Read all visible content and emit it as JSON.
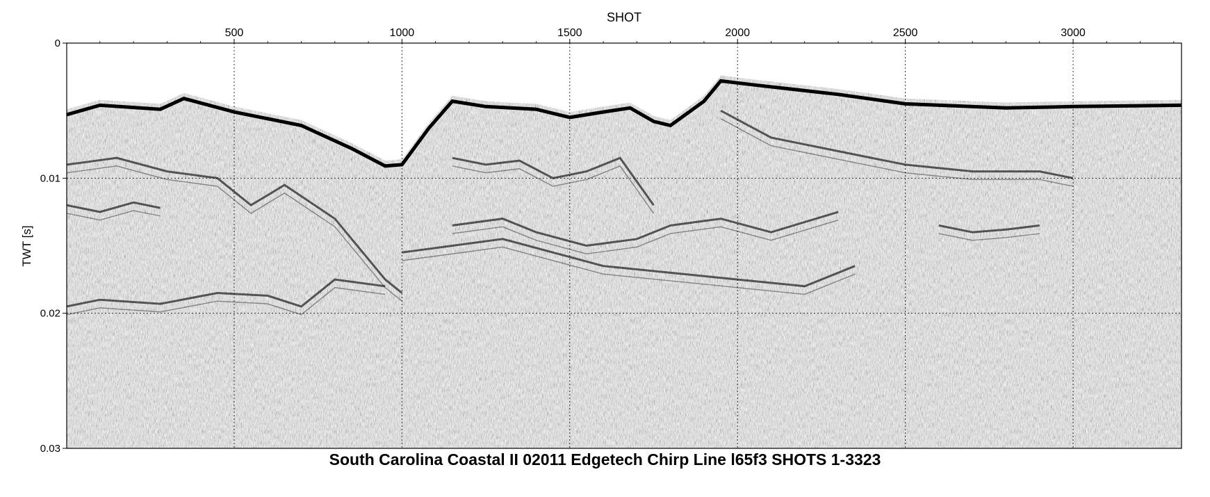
{
  "chart_data": {
    "type": "seismic-section",
    "title": "South Carolina Coastal II 02011 Edgetech Chirp Line l65f3 SHOTS 1-3323",
    "xlabel": "SHOT",
    "ylabel": "TWT [s]",
    "xlim": [
      1,
      3323
    ],
    "ylim": [
      0,
      0.03
    ],
    "x_ticks": [
      500,
      1000,
      1500,
      2000,
      2500,
      3000
    ],
    "x_tick_labels": [
      "500",
      "1000",
      "1500",
      "2000",
      "2500",
      "3000"
    ],
    "y_ticks": [
      0,
      0.01,
      0.02,
      0.03
    ],
    "y_tick_labels": [
      "0",
      "0.01",
      "0.02",
      "0.03"
    ],
    "y_inverted": true,
    "grid": true,
    "colormap": "grayscale",
    "seafloor_reflector": {
      "shot": [
        1,
        100,
        280,
        350,
        500,
        700,
        850,
        950,
        1000,
        1080,
        1150,
        1250,
        1400,
        1500,
        1600,
        1680,
        1750,
        1800,
        1900,
        1950,
        2050,
        2300,
        2500,
        2800,
        3000,
        3323
      ],
      "twt": [
        0.005,
        0.0043,
        0.0046,
        0.0038,
        0.0048,
        0.0058,
        0.0075,
        0.0088,
        0.0087,
        0.006,
        0.004,
        0.0044,
        0.0046,
        0.0052,
        0.0048,
        0.0045,
        0.0055,
        0.0058,
        0.004,
        0.0025,
        0.0028,
        0.0035,
        0.0042,
        0.0045,
        0.0044,
        0.0043
      ]
    },
    "subbottom_reflectors": [
      {
        "shot": [
          1,
          150,
          300,
          450,
          550,
          650,
          800,
          950,
          1000
        ],
        "twt": [
          0.009,
          0.0085,
          0.0095,
          0.01,
          0.012,
          0.0105,
          0.013,
          0.0175,
          0.0185
        ]
      },
      {
        "shot": [
          1,
          100,
          200,
          280
        ],
        "twt": [
          0.012,
          0.0125,
          0.0118,
          0.0122
        ]
      },
      {
        "shot": [
          1,
          100,
          280,
          450,
          600,
          700,
          800,
          950
        ],
        "twt": [
          0.0195,
          0.019,
          0.0193,
          0.0185,
          0.0187,
          0.0195,
          0.0175,
          0.018
        ]
      },
      {
        "shot": [
          1150,
          1250,
          1350,
          1450,
          1550,
          1650,
          1750
        ],
        "twt": [
          0.0085,
          0.009,
          0.0087,
          0.01,
          0.0095,
          0.0085,
          0.012
        ]
      },
      {
        "shot": [
          1150,
          1300,
          1400,
          1550,
          1700,
          1800,
          1950,
          2100,
          2300
        ],
        "twt": [
          0.0135,
          0.013,
          0.014,
          0.015,
          0.0145,
          0.0135,
          0.013,
          0.014,
          0.0125
        ]
      },
      {
        "shot": [
          1000,
          1150,
          1300,
          1450,
          1600,
          1800,
          2000,
          2200,
          2350
        ],
        "twt": [
          0.0155,
          0.015,
          0.0145,
          0.0155,
          0.0165,
          0.017,
          0.0175,
          0.018,
          0.0165
        ]
      },
      {
        "shot": [
          1950,
          2100,
          2300,
          2500,
          2700,
          2900,
          3000
        ],
        "twt": [
          0.005,
          0.007,
          0.008,
          0.009,
          0.0095,
          0.0095,
          0.01
        ]
      },
      {
        "shot": [
          2600,
          2700,
          2800,
          2900
        ],
        "twt": [
          0.0135,
          0.014,
          0.0138,
          0.0135
        ]
      }
    ]
  }
}
